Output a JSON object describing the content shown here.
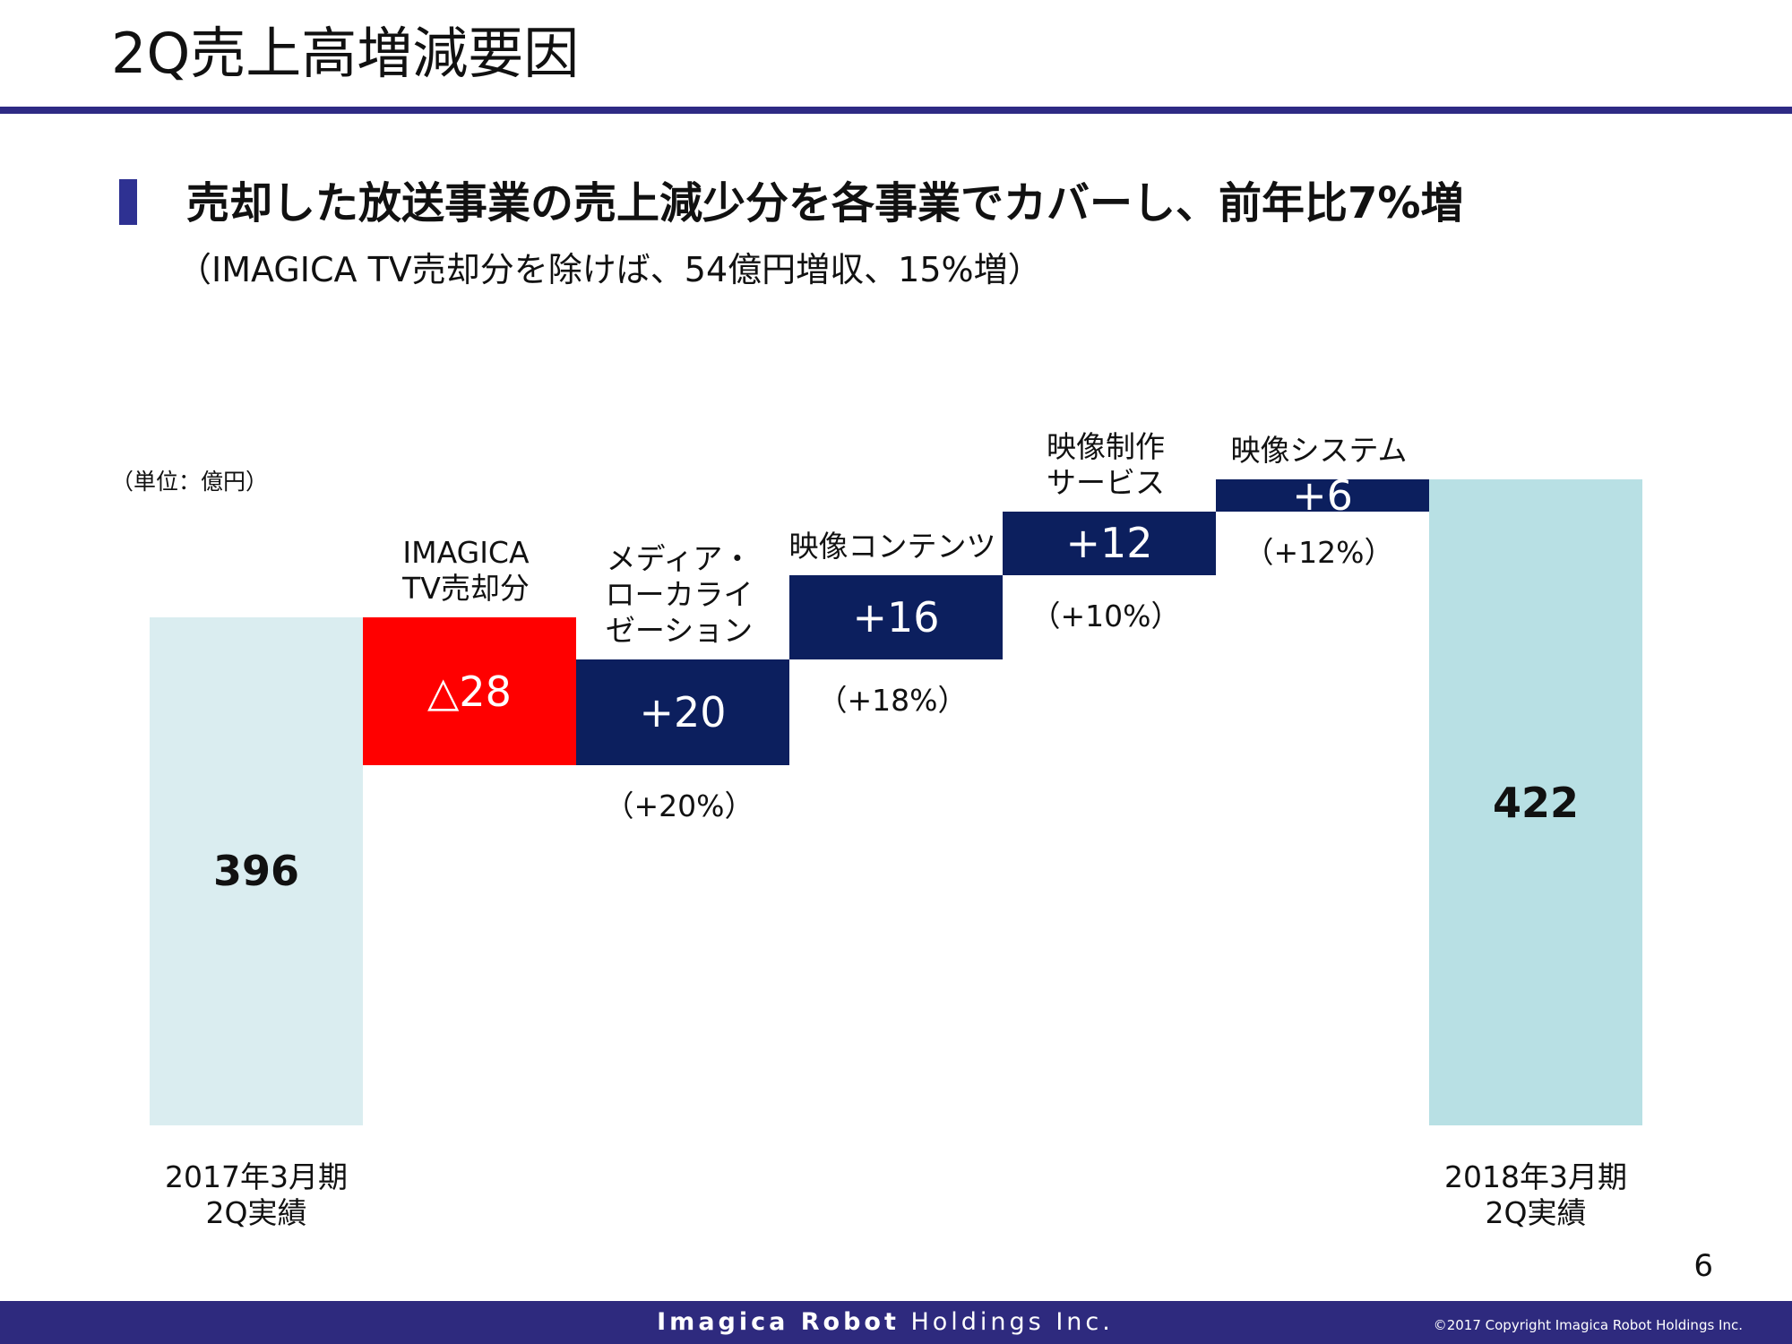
{
  "header": {
    "title": "2Q売上高増減要因",
    "headline": "売却した放送事業の売上減少分を各事業でカバーし、前年比7%増",
    "subtitle": "（IMAGICA TV売却分を除けば、54億円増収、15%増）"
  },
  "chart_data": {
    "type": "waterfall",
    "unit": "（単位：億円）",
    "categories": [
      "2017年3月期\n2Q実績",
      "IMAGICA\nTV売却分",
      "メディア・\nローカライ\nゼーション",
      "映像コンテンツ",
      "映像制作\nサービス",
      "映像システム",
      "2018年3月期\n2Q実績"
    ],
    "values": [
      396,
      -28,
      20,
      16,
      12,
      6,
      422
    ],
    "value_labels": [
      "396",
      "△28",
      "+20",
      "+16",
      "+12",
      "+6",
      "422"
    ],
    "growth_labels": [
      null,
      null,
      "（+20%）",
      "（+18%）",
      "（+10%）",
      "（+12%）",
      null
    ],
    "is_total": [
      true,
      false,
      false,
      false,
      false,
      false,
      true
    ],
    "colors": [
      "#daedf0",
      "#ff0000",
      "#0c1f5e",
      "#0c1f5e",
      "#0c1f5e",
      "#0c1f5e",
      "#b8e0e4"
    ],
    "ylim": [
      300,
      440
    ]
  },
  "page_number": "6",
  "footer": {
    "company_bold": "Imagica Robot",
    "company_rest": "Holdings Inc.",
    "copyright": "©2017  Copyright Imagica Robot Holdings Inc."
  }
}
